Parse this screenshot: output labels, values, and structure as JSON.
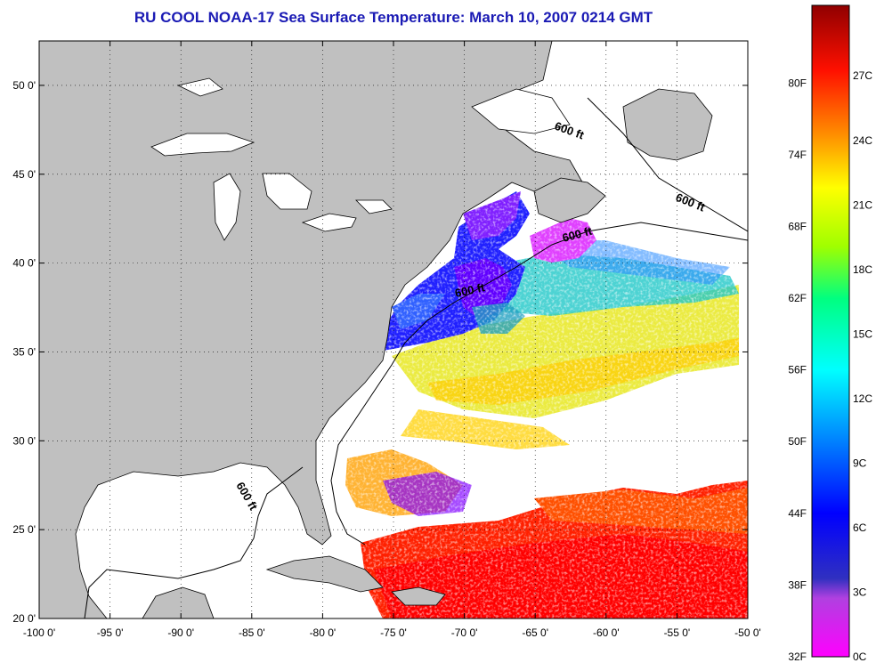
{
  "title": "RU COOL  NOAA-17  Sea Surface Temperature:  March 10, 2007 0214 GMT",
  "map": {
    "lon_range": [
      -100,
      -50
    ],
    "lat_range": [
      20,
      52.5
    ],
    "lon_ticks": [
      "-100 0'",
      "-95 0'",
      "-90 0'",
      "-85 0'",
      "-80 0'",
      "-75 0'",
      "-70 0'",
      "-65 0'",
      "-60 0'",
      "-55 0'",
      "-50 0'"
    ],
    "lat_ticks": [
      "50 0'",
      "45 0'",
      "40 0'",
      "35 0'",
      "30 0'",
      "25 0'",
      "20 0'"
    ],
    "land_color": "#c0c0c0",
    "no_data_color": "#ffffff",
    "contour_label": "600 ft",
    "contour_labels": [
      "600 ft",
      "600 ft",
      "600 ft",
      "600 ft",
      "600 ft"
    ]
  },
  "colorbar": {
    "fahrenheit": [
      "80F",
      "74F",
      "68F",
      "62F",
      "56F",
      "50F",
      "44F",
      "38F",
      "32F"
    ],
    "celsius": [
      "27C",
      "24C",
      "21C",
      "18C",
      "15C",
      "12C",
      "9C",
      "6C",
      "3C",
      "0C"
    ],
    "colors": [
      "#ff00ff",
      "#a030e0",
      "#0000ff",
      "#0080ff",
      "#00ffff",
      "#00ff80",
      "#80ff00",
      "#ffff00",
      "#ff8000",
      "#ff0000",
      "#900000"
    ]
  }
}
